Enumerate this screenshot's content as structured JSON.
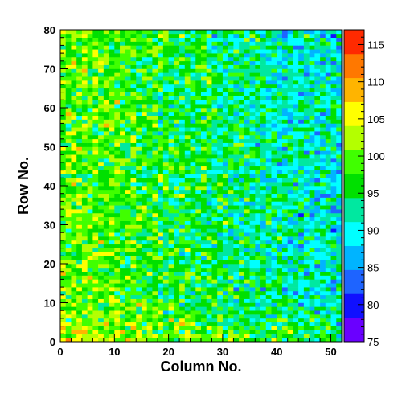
{
  "chart_data": {
    "type": "heatmap",
    "title": "",
    "xlabel": "Column No.",
    "ylabel": "Row No.",
    "xlim": [
      0,
      52
    ],
    "ylim": [
      0,
      80
    ],
    "zlim": [
      75,
      117
    ],
    "x_bins": 52,
    "y_bins": 80,
    "x_ticks": [
      0,
      10,
      20,
      30,
      40,
      50
    ],
    "y_ticks": [
      0,
      10,
      20,
      30,
      40,
      50,
      60,
      70,
      80
    ],
    "colorbar_ticks": [
      75,
      80,
      85,
      90,
      95,
      100,
      105,
      110,
      115
    ],
    "grid": false,
    "colorbar_position": "right",
    "value_trend": {
      "mean_at_column_0": 100,
      "mean_at_column_52": 90,
      "spread": 4
    },
    "colors": {
      "scale": [
        "#6a00ff",
        "#1010ff",
        "#1e64ff",
        "#00b4ff",
        "#00ffff",
        "#00e8a0",
        "#00e000",
        "#40ff00",
        "#b4ff00",
        "#ffff00",
        "#ffb400",
        "#ff7800",
        "#ff2a00"
      ]
    }
  }
}
